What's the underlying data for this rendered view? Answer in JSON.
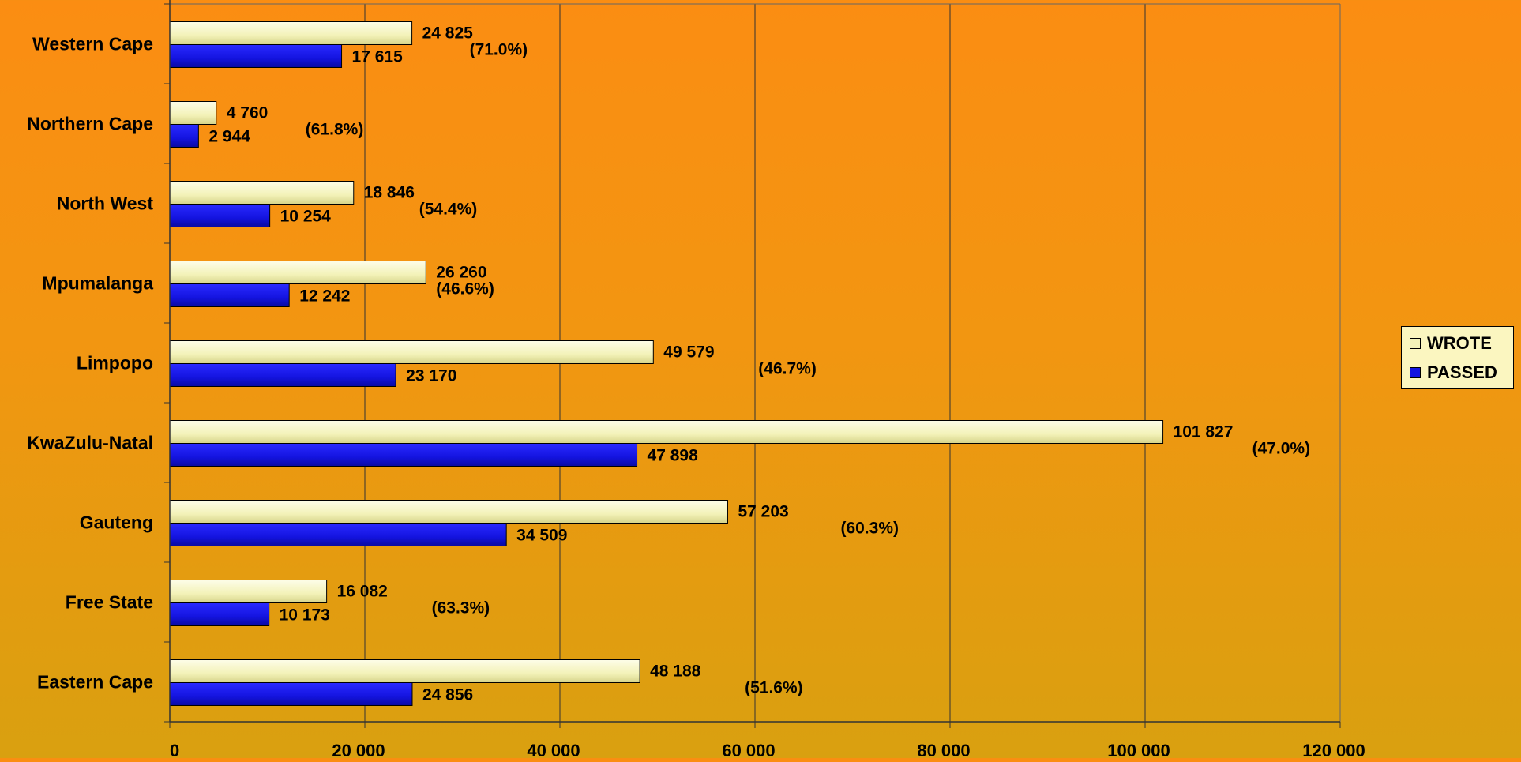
{
  "chart_data": {
    "type": "bar",
    "orientation": "horizontal",
    "categories": [
      "Western Cape",
      "Northern Cape",
      "North West",
      "Mpumalanga",
      "Limpopo",
      "KwaZulu-Natal",
      "Gauteng",
      "Free State",
      "Eastern Cape"
    ],
    "series": [
      {
        "name": "WROTE",
        "values": [
          24825,
          4760,
          18846,
          26260,
          49579,
          101827,
          57203,
          16082,
          48188
        ],
        "labels": [
          "24 825",
          "4 760",
          "18 846",
          "26 260",
          "49 579",
          "101 827",
          "57 203",
          "16 082",
          "48 188"
        ]
      },
      {
        "name": "PASSED",
        "values": [
          17615,
          2944,
          10254,
          12242,
          23170,
          47898,
          34509,
          10173,
          24856
        ],
        "labels": [
          "17 615",
          "2 944",
          "10 254",
          "12 242",
          "23 170",
          "47 898",
          "34 509",
          "10 173",
          "24 856"
        ]
      }
    ],
    "pass_rates": [
      "(71.0%)",
      "(61.8%)",
      "(54.4%)",
      "(46.6%)",
      "(46.7%)",
      "(47.0%)",
      "(60.3%)",
      "(63.3%)",
      "(51.6%)"
    ],
    "xlim": [
      0,
      120000
    ],
    "x_ticks": [
      0,
      20000,
      40000,
      60000,
      80000,
      100000,
      120000
    ],
    "x_tick_labels": [
      "0",
      "20 000",
      "40 000",
      "60 000",
      "80 000",
      "100 000",
      "120 000"
    ],
    "title": "",
    "xlabel": "",
    "ylabel": "",
    "grid": "vertical",
    "legend_position": "right",
    "colors": {
      "wrote": "#f7f7c0",
      "passed": "#1a1ae0",
      "gridline": "#333333"
    }
  }
}
